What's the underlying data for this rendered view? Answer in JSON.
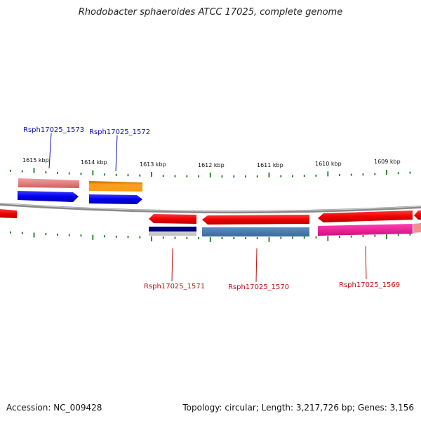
{
  "title": "Rhodobacter sphaeroides ATCC 17025, complete genome",
  "footer": {
    "accession": "Accession: NC_009428",
    "summary": "Topology: circular; Length: 3,217,726 bp; Genes: 3,156"
  },
  "colors": {
    "backbone": "#8a8a8a",
    "tick": "#2e8b2e",
    "forward_label": "#1010c0",
    "reverse_label": "#c01010"
  },
  "ticks": [
    {
      "label": "1615 kbp"
    },
    {
      "label": "1614 kbp"
    },
    {
      "label": "1613 kbp"
    },
    {
      "label": "1612 kbp"
    },
    {
      "label": "1611 kbp"
    },
    {
      "label": "1610 kbp"
    },
    {
      "label": "1609 kbp"
    }
  ],
  "genes": [
    {
      "label": "Rsph17025_1573",
      "strand": "forward"
    },
    {
      "label": "Rsph17025_1572",
      "strand": "forward"
    },
    {
      "label": "Rsph17025_1571",
      "strand": "reverse"
    },
    {
      "label": "Rsph17025_1570",
      "strand": "reverse"
    },
    {
      "label": "Rsph17025_1569",
      "strand": "reverse"
    }
  ]
}
